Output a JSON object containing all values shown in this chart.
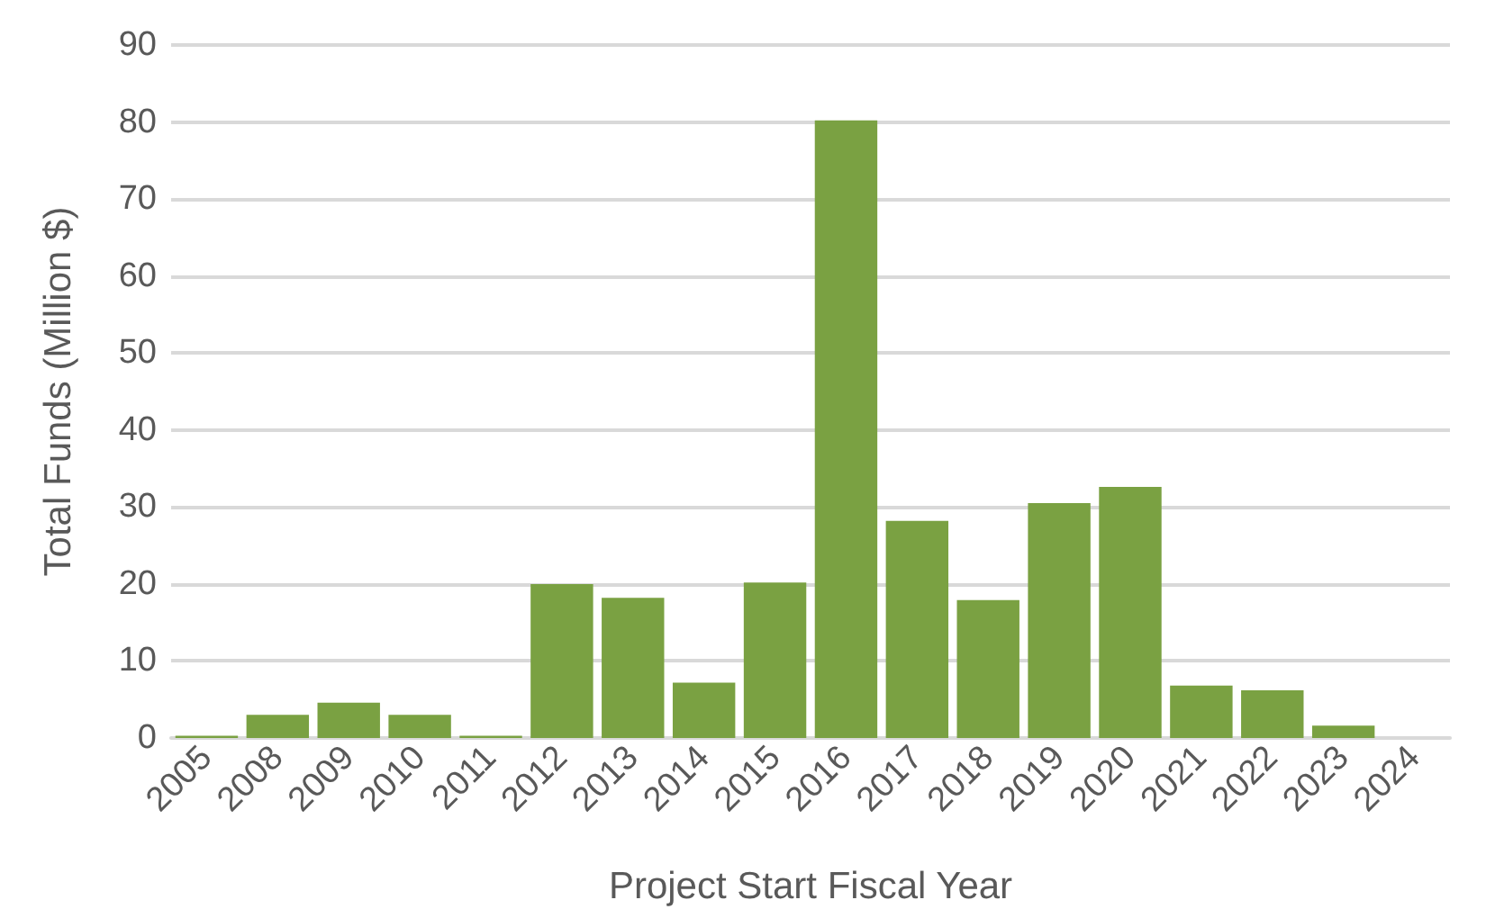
{
  "chart_data": {
    "type": "bar",
    "xlabel": "Project Start Fiscal Year",
    "ylabel": "Total Funds (Million $)",
    "categories": [
      "2005",
      "2008",
      "2009",
      "2010",
      "2011",
      "2012",
      "2013",
      "2014",
      "2015",
      "2016",
      "2017",
      "2018",
      "2019",
      "2020",
      "2021",
      "2022",
      "2023",
      "2024"
    ],
    "values": [
      0.3,
      3.0,
      4.6,
      3.0,
      0.3,
      20.0,
      18.2,
      7.2,
      20.2,
      80.2,
      28.2,
      17.9,
      30.5,
      32.6,
      6.8,
      6.2,
      1.6,
      0
    ],
    "color": "#7aa142",
    "ylim": [
      0,
      90
    ],
    "yticks": [
      0,
      10,
      20,
      30,
      40,
      50,
      60,
      70,
      80,
      90
    ],
    "grid": "y"
  }
}
